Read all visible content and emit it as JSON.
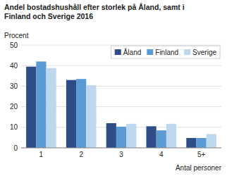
{
  "chart_data": {
    "type": "bar",
    "title": "Andel bostadshushåll efter storlek på Åland, samt i\nFinland och Sverige 2016",
    "y_label": "Procent",
    "x_label": "Antal personer",
    "categories": [
      "1",
      "2",
      "3",
      "4",
      "5+"
    ],
    "series": [
      {
        "name": "Åland",
        "color": "#2e4d87",
        "values": [
          39.5,
          33.0,
          12.0,
          10.5,
          4.8
        ]
      },
      {
        "name": "Finland",
        "color": "#5b9bd5",
        "values": [
          42.0,
          33.5,
          10.3,
          8.5,
          4.8
        ]
      },
      {
        "name": "Sverige",
        "color": "#bdd7ee",
        "values": [
          38.8,
          30.5,
          11.7,
          11.7,
          6.7
        ]
      }
    ],
    "ylim": [
      0,
      50
    ],
    "yticks": [
      0,
      10,
      20,
      30,
      40,
      50
    ],
    "grid": true,
    "legend": "upper right"
  }
}
